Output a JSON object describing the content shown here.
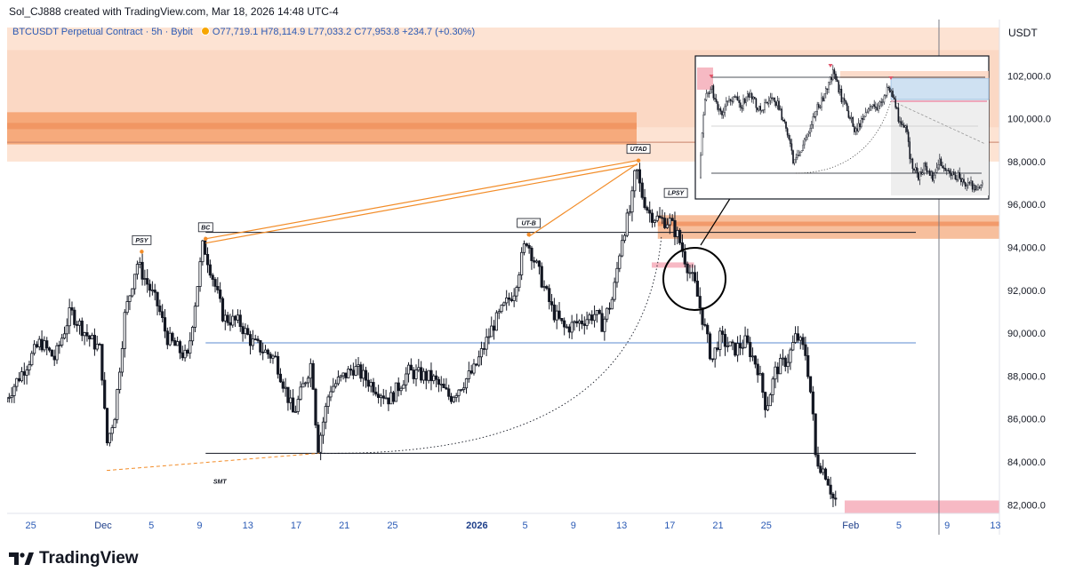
{
  "caption": "Sol_CJ888 created with TradingView.com, Mar 18, 2026 14:48 UTC-4",
  "legend": {
    "symbol": "BTCUSDT Perpetual Contract · 5h · Bybit",
    "open": "O77,719.1",
    "high": "H78,114.9",
    "low": "L77,033.2",
    "close": "C77,953.8",
    "change": "+234.7 (+0.30%)"
  },
  "currency": "USDT",
  "brand": "TradingView",
  "colors": {
    "up": "#131722",
    "zone_orange": "#f4a06c",
    "zone_light": "#fbd8c4",
    "pink": "#f7b9c4",
    "blue_line": "#5b8bd0",
    "orange_line": "#f28c28"
  },
  "chart_data": {
    "type": "candlestick",
    "title": "BTCUSDT Perpetual Contract · 5h · Bybit",
    "x_ticks": [
      {
        "label": "25",
        "day": -6
      },
      {
        "label": "Dec",
        "day": 0
      },
      {
        "label": "5",
        "day": 4
      },
      {
        "label": "9",
        "day": 8
      },
      {
        "label": "13",
        "day": 12
      },
      {
        "label": "17",
        "day": 16
      },
      {
        "label": "21",
        "day": 20
      },
      {
        "label": "25",
        "day": 24
      },
      {
        "label": "2026",
        "day": 31
      },
      {
        "label": "5",
        "day": 35
      },
      {
        "label": "9",
        "day": 39
      },
      {
        "label": "13",
        "day": 43
      },
      {
        "label": "17",
        "day": 47
      },
      {
        "label": "21",
        "day": 51
      },
      {
        "label": "25",
        "day": 55
      },
      {
        "label": "Feb",
        "day": 62
      },
      {
        "label": "5",
        "day": 66
      },
      {
        "label": "9",
        "day": 70
      },
      {
        "label": "13",
        "day": 74
      }
    ],
    "x_range_days": [
      -8,
      74.5
    ],
    "y_ticks": [
      82000,
      84000,
      86000,
      88000,
      90000,
      92000,
      94000,
      96000,
      98000,
      100000,
      102000
    ],
    "y_tick_labels": [
      "82,000.0",
      "84,000.0",
      "86,000.0",
      "88,000.0",
      "90,000.0",
      "92,000.0",
      "94,000.0",
      "96,000.0",
      "98,000.0",
      "100,000.0",
      "102,000.0"
    ],
    "ylim": [
      81900,
      104250
    ],
    "price_path": [
      [
        -8,
        86800
      ],
      [
        -6.5,
        88200
      ],
      [
        -5,
        89600
      ],
      [
        -3.8,
        88800
      ],
      [
        -2.5,
        91000
      ],
      [
        -1,
        89800
      ],
      [
        0,
        89200
      ],
      [
        0.5,
        84800
      ],
      [
        1.2,
        86300
      ],
      [
        2,
        90800
      ],
      [
        3,
        93300
      ],
      [
        3.8,
        92400
      ],
      [
        4.8,
        91200
      ],
      [
        5.5,
        89800
      ],
      [
        7.2,
        88800
      ],
      [
        8.5,
        94200
      ],
      [
        9.4,
        92400
      ],
      [
        10.2,
        90700
      ],
      [
        11.5,
        90500
      ],
      [
        12.5,
        89600
      ],
      [
        14.5,
        88800
      ],
      [
        16,
        86200
      ],
      [
        17.5,
        88700
      ],
      [
        18,
        84600
      ],
      [
        19,
        87400
      ],
      [
        21,
        88400
      ],
      [
        22.5,
        87600
      ],
      [
        24,
        86900
      ],
      [
        25.5,
        88200
      ],
      [
        27.5,
        87900
      ],
      [
        29,
        87000
      ],
      [
        31,
        88300
      ],
      [
        32.5,
        90300
      ],
      [
        34.3,
        92000
      ],
      [
        35.3,
        94400
      ],
      [
        36.3,
        92900
      ],
      [
        37.5,
        91000
      ],
      [
        38.5,
        90200
      ],
      [
        40,
        90600
      ],
      [
        41,
        90900
      ],
      [
        41.6,
        90400
      ],
      [
        42.5,
        91700
      ],
      [
        43.2,
        94400
      ],
      [
        44,
        95900
      ],
      [
        44.4,
        97800
      ],
      [
        44.8,
        96600
      ],
      [
        45.5,
        95600
      ],
      [
        46.3,
        95300
      ],
      [
        47.2,
        95200
      ],
      [
        47.9,
        94500
      ],
      [
        48.5,
        93400
      ],
      [
        49.3,
        92200
      ],
      [
        50,
        90500
      ],
      [
        50.7,
        88700
      ],
      [
        51.3,
        89800
      ],
      [
        52.5,
        89200
      ],
      [
        53.5,
        89600
      ],
      [
        54.5,
        88400
      ],
      [
        55.2,
        86500
      ],
      [
        56,
        88300
      ],
      [
        57,
        88800
      ],
      [
        57.7,
        89900
      ],
      [
        58.5,
        89000
      ],
      [
        59,
        86700
      ],
      [
        59.3,
        84200
      ],
      [
        60.2,
        83400
      ],
      [
        60.8,
        82200
      ]
    ],
    "horizontal_levels": [
      {
        "name": "range-high",
        "value": 94700
      },
      {
        "name": "mid-range",
        "value": 89550
      },
      {
        "name": "range-low",
        "value": 84400
      }
    ],
    "zones": [
      {
        "name": "supply-zone-wide",
        "low": 98000,
        "high": 104250
      },
      {
        "name": "supply-zone-core",
        "low": 98800,
        "high": 100300
      },
      {
        "name": "zone-right-mid",
        "low": 94400,
        "high": 95500
      },
      {
        "name": "pink-zone-bottom",
        "low": 81900,
        "high": 82200
      }
    ],
    "annotations": [
      {
        "label": "PSY",
        "day": 3.2,
        "price": 93800
      },
      {
        "label": "BC",
        "day": 8.5,
        "price": 94400
      },
      {
        "label": "UT-B",
        "day": 35.3,
        "price": 94600
      },
      {
        "label": "UTAD",
        "day": 44.4,
        "price": 98050
      },
      {
        "label": "LPSY",
        "day": 47.5,
        "price": 96000
      },
      {
        "label": "SMT",
        "day": 9.5,
        "price": 83600
      }
    ],
    "inset_label": "BTC 2021–2022 cycle top analog"
  }
}
